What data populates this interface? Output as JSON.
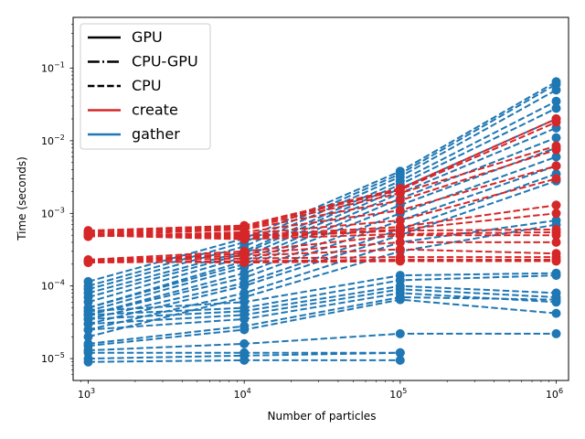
{
  "chart_data": {
    "type": "line",
    "title": "",
    "xlabel": "Number of particles",
    "ylabel": "Time (seconds)",
    "xscale": "log",
    "yscale": "log",
    "xlim": [
      800,
      1200000
    ],
    "ylim": [
      5e-06,
      0.5
    ],
    "x": [
      1000,
      10000,
      100000,
      1000000
    ],
    "x_ticks": [
      {
        "value": 1000,
        "base": "10",
        "exp": "3"
      },
      {
        "value": 10000,
        "base": "10",
        "exp": "4"
      },
      {
        "value": 100000,
        "base": "10",
        "exp": "5"
      },
      {
        "value": 1000000,
        "base": "10",
        "exp": "6"
      }
    ],
    "y_ticks": [
      {
        "value": 1e-05,
        "base": "10",
        "exp": "−5"
      },
      {
        "value": 0.0001,
        "base": "10",
        "exp": "−4"
      },
      {
        "value": 0.001,
        "base": "10",
        "exp": "−3"
      },
      {
        "value": 0.01,
        "base": "10",
        "exp": "−2"
      },
      {
        "value": 0.1,
        "base": "10",
        "exp": "−1"
      }
    ],
    "grid": false,
    "legend_position": "top-left",
    "legend": [
      {
        "label": "GPU",
        "kind": "linestyle",
        "dash": "solid"
      },
      {
        "label": "CPU-GPU",
        "kind": "linestyle",
        "dash": "dashdot"
      },
      {
        "label": "CPU",
        "kind": "linestyle",
        "dash": "dashed"
      },
      {
        "label": "create",
        "kind": "color",
        "color": "#d62728"
      },
      {
        "label": "gather",
        "kind": "color",
        "color": "#1f77b4"
      }
    ],
    "colors": {
      "create": "#d62728",
      "gather": "#1f77b4"
    },
    "series": [
      {
        "group": "gather",
        "style": "dashed",
        "values": [
          0.000115,
          0.00045,
          0.0038,
          0.065
        ]
      },
      {
        "group": "gather",
        "style": "dashed",
        "values": [
          0.0001,
          0.0004,
          0.0035,
          0.06
        ]
      },
      {
        "group": "gather",
        "style": "dashed",
        "values": [
          9e-05,
          0.00035,
          0.0032,
          0.05
        ]
      },
      {
        "group": "gather",
        "style": "dashed",
        "values": [
          8e-05,
          0.0003,
          0.0028,
          0.035
        ]
      },
      {
        "group": "gather",
        "style": "dashed",
        "values": [
          7e-05,
          0.00028,
          0.0025,
          0.028
        ]
      },
      {
        "group": "gather",
        "style": "dashed",
        "values": [
          6e-05,
          0.00025,
          0.0022,
          0.02
        ]
      },
      {
        "group": "gather",
        "style": "dashed",
        "values": [
          5e-05,
          0.00022,
          0.0019,
          0.015
        ]
      },
      {
        "group": "gather",
        "style": "dashed",
        "values": [
          5e-05,
          0.0002,
          0.0016,
          0.011
        ]
      },
      {
        "group": "gather",
        "style": "dashed",
        "values": [
          4.5e-05,
          0.00018,
          0.0013,
          0.008
        ]
      },
      {
        "group": "gather",
        "style": "dashed",
        "values": [
          4e-05,
          0.00015,
          0.001,
          0.006
        ]
      },
      {
        "group": "gather",
        "style": "dashed",
        "values": [
          4e-05,
          0.00013,
          0.0008,
          0.0045
        ]
      },
      {
        "group": "gather",
        "style": "dashed",
        "values": [
          3.5e-05,
          0.00011,
          0.0006,
          0.0035
        ]
      },
      {
        "group": "gather",
        "style": "dashed",
        "values": [
          3e-05,
          0.0001,
          0.0005,
          0.0028
        ]
      },
      {
        "group": "gather",
        "style": "dashed",
        "values": [
          2.5e-05,
          8e-05,
          0.0004,
          0.0008
        ]
      },
      {
        "group": "gather",
        "style": "dashed",
        "values": [
          2e-05,
          7e-05,
          0.0003,
          0.0007
        ]
      },
      {
        "group": "gather",
        "style": "dashed",
        "values": [
          4.5e-05,
          6e-05,
          0.00014,
          0.00015
        ]
      },
      {
        "group": "gather",
        "style": "dashed",
        "values": [
          4e-05,
          5e-05,
          0.00012,
          0.00014
        ]
      },
      {
        "group": "gather",
        "style": "dashed",
        "values": [
          3.5e-05,
          4.5e-05,
          0.0001,
          8e-05
        ]
      },
      {
        "group": "gather",
        "style": "dashed",
        "values": [
          3e-05,
          4e-05,
          9e-05,
          7e-05
        ]
      },
      {
        "group": "gather",
        "style": "dashed",
        "values": [
          2.5e-05,
          3.5e-05,
          8e-05,
          6e-05
        ]
      },
      {
        "group": "gather",
        "style": "dashed",
        "values": [
          1.6e-05,
          2.8e-05,
          7e-05,
          6.5e-05
        ]
      },
      {
        "group": "gather",
        "style": "dashed",
        "values": [
          1.5e-05,
          2.5e-05,
          6.5e-05,
          4.2e-05
        ]
      },
      {
        "group": "gather",
        "style": "dashed",
        "values": [
          1.3e-05,
          1.6e-05,
          2.2e-05,
          2.2e-05
        ]
      },
      {
        "group": "gather",
        "style": "dashed",
        "values": [
          1.2e-05,
          1.2e-05,
          1.2e-05,
          null
        ]
      },
      {
        "group": "gather",
        "style": "dashed",
        "values": [
          1e-05,
          1.1e-05,
          1.2e-05,
          null
        ]
      },
      {
        "group": "gather",
        "style": "dashed",
        "values": [
          9e-06,
          9.5e-06,
          9.5e-06,
          null
        ]
      },
      {
        "group": "create",
        "style": "dashed",
        "values": [
          0.00058,
          0.00068,
          0.0022,
          0.02
        ]
      },
      {
        "group": "create",
        "style": "dashed",
        "values": [
          0.00055,
          0.00065,
          0.0021,
          0.018
        ]
      },
      {
        "group": "create",
        "style": "dashed",
        "values": [
          0.00052,
          0.00062,
          0.0019,
          0.0085
        ]
      },
      {
        "group": "create",
        "style": "dashed",
        "values": [
          0.0005,
          0.0006,
          0.0015,
          0.0075
        ]
      },
      {
        "group": "create",
        "style": "dashed",
        "values": [
          0.00048,
          0.00055,
          0.0011,
          0.0045
        ]
      },
      {
        "group": "create",
        "style": "dashed",
        "values": [
          0.0005,
          0.00052,
          0.0008,
          0.003
        ]
      },
      {
        "group": "create",
        "style": "dashed",
        "values": [
          0.0005,
          0.0005,
          0.00065,
          0.0013
        ]
      },
      {
        "group": "create",
        "style": "dashed",
        "values": [
          0.00049,
          0.00048,
          0.0006,
          0.001
        ]
      },
      {
        "group": "create",
        "style": "dashed",
        "values": [
          0.00051,
          0.00046,
          0.00058,
          0.0006
        ]
      },
      {
        "group": "create",
        "style": "dashed",
        "values": [
          0.0005,
          0.00044,
          0.00052,
          0.00055
        ]
      },
      {
        "group": "create",
        "style": "dashed",
        "values": [
          0.00023,
          0.0003,
          0.0005,
          0.0005
        ]
      },
      {
        "group": "create",
        "style": "dashed",
        "values": [
          0.00022,
          0.00028,
          0.0004,
          0.0004
        ]
      },
      {
        "group": "create",
        "style": "dashed",
        "values": [
          0.00022,
          0.00026,
          0.00032,
          0.00028
        ]
      },
      {
        "group": "create",
        "style": "dashed",
        "values": [
          0.00022,
          0.00024,
          0.00025,
          0.00025
        ]
      },
      {
        "group": "create",
        "style": "dashed",
        "values": [
          0.00021,
          0.00022,
          0.00023,
          0.00023
        ]
      },
      {
        "group": "create",
        "style": "dashed",
        "values": [
          0.00022,
          0.00021,
          0.00022,
          0.00022
        ]
      }
    ]
  }
}
